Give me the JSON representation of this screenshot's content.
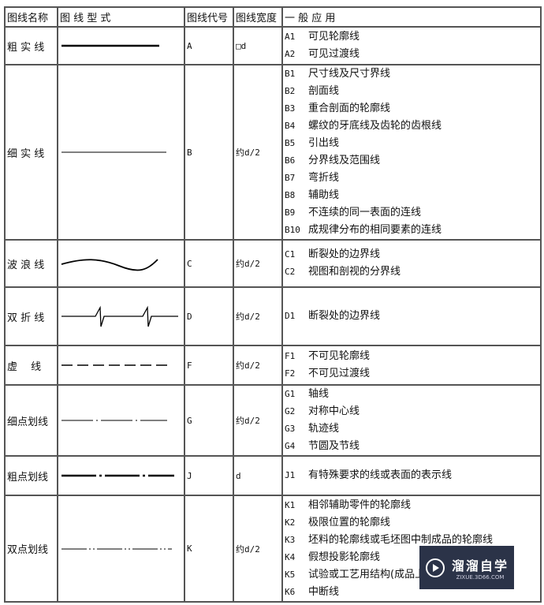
{
  "headers": [
    "图线名称",
    "图 线 型 式",
    "图线代号",
    "图线宽度",
    "一 般 应 用"
  ],
  "rows": [
    {
      "name": "粗 实 线",
      "pattern": "thick-solid",
      "code": "A",
      "width": "□d",
      "uses": [
        [
          "A1",
          "可见轮廓线"
        ],
        [
          "A2",
          "可见过渡线"
        ]
      ]
    },
    {
      "name": "细 实 线",
      "pattern": "thin-solid",
      "code": "B",
      "width": "约d/2",
      "uses": [
        [
          "B1",
          "尺寸线及尺寸界线"
        ],
        [
          "B2",
          "剖面线"
        ],
        [
          "B3",
          "重合剖面的轮廓线"
        ],
        [
          "B4",
          "螺纹的牙底线及齿轮的齿根线"
        ],
        [
          "B5",
          "引出线"
        ],
        [
          "B6",
          "分界线及范围线"
        ],
        [
          "B7",
          "弯折线"
        ],
        [
          "B8",
          "辅助线"
        ],
        [
          "B9",
          "不连续的同一表面的连线"
        ],
        [
          "B10",
          "成规律分布的相同要素的连线"
        ]
      ]
    },
    {
      "name": "波 浪 线",
      "pattern": "wave",
      "code": "C",
      "width": "约d/2",
      "uses": [
        [
          "C1",
          "断裂处的边界线"
        ],
        [
          "C2",
          "视图和剖视的分界线"
        ]
      ]
    },
    {
      "name": "双 折 线",
      "pattern": "zigzag",
      "code": "D",
      "width": "约d/2",
      "uses": [
        [
          "D1",
          "断裂处的边界线"
        ]
      ]
    },
    {
      "name": "虚　 线",
      "pattern": "dashed",
      "code": "F",
      "width": "约d/2",
      "uses": [
        [
          "F1",
          "不可见轮廓线"
        ],
        [
          "F2",
          "不可见过渡线"
        ]
      ]
    },
    {
      "name": "细点划线",
      "pattern": "thin-dash-dot",
      "code": "G",
      "width": "约d/2",
      "uses": [
        [
          "G1",
          "轴线"
        ],
        [
          "G2",
          "对称中心线"
        ],
        [
          "G3",
          "轨迹线"
        ],
        [
          "G4",
          "节圆及节线"
        ]
      ]
    },
    {
      "name": "粗点划线",
      "pattern": "thick-dash-dot",
      "code": "J",
      "width": "d",
      "uses": [
        [
          "J1",
          "有特殊要求的线或表面的表示线"
        ]
      ]
    },
    {
      "name": "双点划线",
      "pattern": "dash-double-dot",
      "code": "K",
      "width": "约d/2",
      "uses": [
        [
          "K1",
          "相邻辅助零件的轮廓线"
        ],
        [
          "K2",
          "极限位置的轮廓线"
        ],
        [
          "K3",
          "坯料的轮廓线或毛坯图中制成品的轮廓线"
        ],
        [
          "K4",
          "假想投影轮廓线"
        ],
        [
          "K5",
          "试验或工艺用结构(成品上不存在)"
        ],
        [
          "K6",
          "中断线"
        ]
      ]
    }
  ],
  "watermark": {
    "title": "溜溜自学",
    "url": "ZIXUE.3D66.COM"
  }
}
